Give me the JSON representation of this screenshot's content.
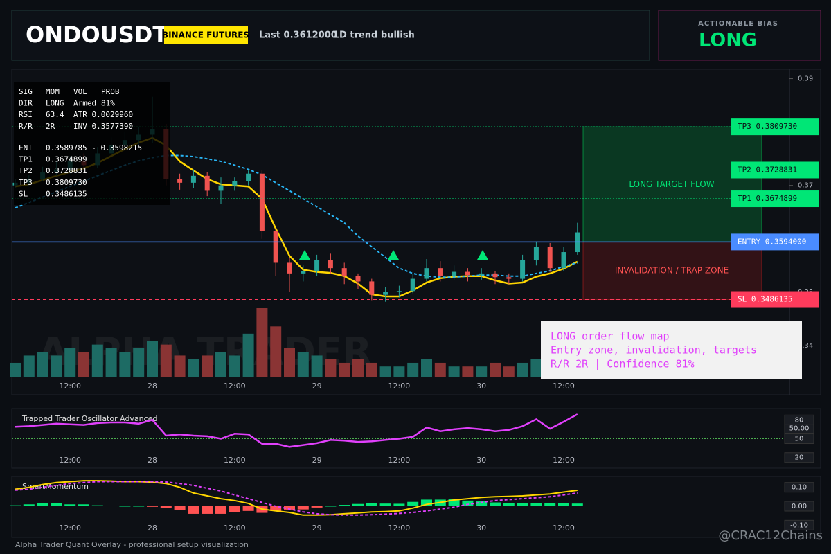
{
  "header": {
    "symbol": "ONDOUSDT",
    "exchange": "BINANCE FUTURES",
    "last": "Last 0.3612000",
    "trend": "1D trend bullish"
  },
  "bias": {
    "label": "ACTIONABLE BIAS",
    "value": "LONG"
  },
  "info_panel": {
    "status_rows": [
      [
        "SIG",
        "MOM",
        "VOL",
        "PROB"
      ],
      [
        "DIR",
        "LONG",
        "Armed",
        "81%"
      ],
      [
        "RSI",
        "63.4",
        "ATR 0.0029960"
      ],
      [
        "R/R",
        "2R",
        "INV 0.3577390"
      ]
    ],
    "level_rows": [
      [
        "ENT",
        "0.3589785 - 0.3598215"
      ],
      [
        "TP1",
        "0.3674899"
      ],
      [
        "TP2",
        "0.3728831"
      ],
      [
        "TP3",
        "0.3809730"
      ],
      [
        "SL",
        "0.3486135"
      ]
    ]
  },
  "chart_data": [
    {
      "type": "candlestick",
      "categories": [
        null,
        null,
        null,
        null,
        "12:00",
        null,
        null,
        null,
        null,
        null,
        "28",
        null,
        null,
        null,
        null,
        null,
        "12:00",
        null,
        null,
        null,
        null,
        null,
        "29",
        null,
        null,
        null,
        null,
        null,
        "12:00",
        null,
        null,
        null,
        null,
        null,
        "30",
        null,
        null,
        null,
        null,
        null,
        "12:00",
        null
      ],
      "open": [
        0.37,
        0.3705,
        0.3712,
        0.3725,
        0.373,
        0.3745,
        0.3738,
        0.376,
        0.3775,
        0.3785,
        0.3795,
        0.3805,
        0.3712,
        0.3705,
        0.3718,
        0.369,
        0.37,
        0.3708,
        0.3722,
        0.3615,
        0.3555,
        0.3535,
        0.354,
        0.356,
        0.3545,
        0.353,
        0.352,
        0.3495,
        0.35,
        0.3502,
        0.3525,
        0.3545,
        0.353,
        0.3538,
        0.3532,
        0.3535,
        0.3528,
        0.3525,
        0.356,
        0.3585,
        0.3545,
        0.3575
      ],
      "high": [
        0.3712,
        0.372,
        0.3735,
        0.3745,
        0.3755,
        0.376,
        0.3772,
        0.379,
        0.38,
        0.381,
        0.3866,
        0.3815,
        0.3722,
        0.373,
        0.3725,
        0.3715,
        0.3715,
        0.3728,
        0.3728,
        0.362,
        0.3565,
        0.355,
        0.357,
        0.3572,
        0.3555,
        0.3535,
        0.3525,
        0.351,
        0.3512,
        0.3535,
        0.3562,
        0.3558,
        0.355,
        0.3545,
        0.3545,
        0.354,
        0.3535,
        0.357,
        0.3595,
        0.3592,
        0.3585,
        0.363
      ],
      "low": [
        0.3695,
        0.37,
        0.3708,
        0.3718,
        0.3722,
        0.373,
        0.3732,
        0.3752,
        0.3765,
        0.3772,
        0.378,
        0.37,
        0.3692,
        0.3695,
        0.368,
        0.3665,
        0.369,
        0.37,
        0.36,
        0.353,
        0.35,
        0.352,
        0.353,
        0.3535,
        0.3515,
        0.3505,
        0.3485,
        0.3482,
        0.349,
        0.3498,
        0.352,
        0.352,
        0.3522,
        0.352,
        0.3522,
        0.3515,
        0.3515,
        0.352,
        0.355,
        0.3538,
        0.354,
        0.357
      ],
      "close": [
        0.3705,
        0.3712,
        0.3725,
        0.373,
        0.3745,
        0.3738,
        0.376,
        0.3775,
        0.3785,
        0.3795,
        0.3805,
        0.3712,
        0.3705,
        0.3718,
        0.369,
        0.37,
        0.3708,
        0.3722,
        0.3615,
        0.3555,
        0.3535,
        0.354,
        0.356,
        0.3545,
        0.353,
        0.352,
        0.3495,
        0.35,
        0.3502,
        0.3525,
        0.3545,
        0.353,
        0.3538,
        0.3532,
        0.3535,
        0.3528,
        0.3525,
        0.356,
        0.3585,
        0.3545,
        0.3575,
        0.3612
      ],
      "volume": [
        20,
        30,
        35,
        30,
        40,
        35,
        45,
        40,
        35,
        40,
        50,
        45,
        30,
        25,
        30,
        35,
        30,
        60,
        95,
        70,
        40,
        35,
        30,
        25,
        20,
        25,
        20,
        15,
        15,
        20,
        25,
        20,
        15,
        15,
        15,
        20,
        15,
        20,
        25,
        20,
        25,
        40
      ],
      "colors": {
        "up": "#26a69a",
        "down": "#ef5350",
        "volume_up": "#1d6b64",
        "volume_down": "#8a3434"
      },
      "lines": [
        {
          "color": "#ffd600",
          "dashed": false,
          "values": [
            0.3698,
            0.3702,
            0.371,
            0.3718,
            0.3725,
            0.3732,
            0.3742,
            0.3755,
            0.3768,
            0.378,
            0.3789,
            0.3775,
            0.3745,
            0.3728,
            0.3712,
            0.3702,
            0.37,
            0.3698,
            0.3675,
            0.3619,
            0.3568,
            0.3542,
            0.3538,
            0.3536,
            0.353,
            0.3516,
            0.3496,
            0.3492,
            0.3492,
            0.3503,
            0.3518,
            0.3526,
            0.3529,
            0.353,
            0.353,
            0.3522,
            0.3516,
            0.3518,
            0.3529,
            0.3535,
            0.3544,
            0.3557
          ]
        },
        {
          "color": "#29b6f6",
          "dashed": true,
          "values": [
            0.3658,
            0.3668,
            0.3678,
            0.3688,
            0.3698,
            0.3708,
            0.3718,
            0.3728,
            0.3738,
            0.3746,
            0.3752,
            0.3756,
            0.3756,
            0.3754,
            0.375,
            0.3745,
            0.3738,
            0.373,
            0.372,
            0.3705,
            0.369,
            0.3675,
            0.366,
            0.3645,
            0.363,
            0.3605,
            0.3585,
            0.3565,
            0.3545,
            0.3535,
            0.353,
            0.3528,
            0.3528,
            0.353,
            0.3532,
            0.3532,
            0.353,
            0.353,
            0.3535,
            0.354,
            0.3548,
            0.3555
          ]
        }
      ],
      "ylim": [
        0.3335,
        0.3915
      ],
      "yticks": [
        0.34,
        0.35,
        0.37,
        0.39
      ],
      "zones": [
        {
          "label": "LONG TARGET FLOW",
          "from": 0.3594,
          "to": 0.380973,
          "color": "#00c853",
          "text_color": "#00e676"
        },
        {
          "label": "INVALIDATION / TRAP ZONE",
          "from": 0.3486135,
          "to": 0.3594,
          "color": "#b71c1c",
          "text_color": "#ff5252"
        }
      ],
      "levels": [
        {
          "label": "TP3 0.3809730",
          "value": 0.380973,
          "color": "#00e676",
          "text_color": "#0b0f14",
          "style": "dotted"
        },
        {
          "label": "TP2 0.3728831",
          "value": 0.3728831,
          "color": "#00e676",
          "text_color": "#0b0f14",
          "style": "dotted"
        },
        {
          "label": "TP1 0.3674899",
          "value": 0.3674899,
          "color": "#00e676",
          "text_color": "#0b0f14",
          "style": "dotted"
        },
        {
          "label": "ENTRY 0.3594000",
          "value": 0.3594,
          "color": "#4a8cff",
          "text_color": "#ffffff",
          "style": "solid"
        },
        {
          "label": "SL 0.3486135",
          "value": 0.3486135,
          "color": "#ff3b5c",
          "text_color": "#ffffff",
          "style": "dashed"
        }
      ]
    },
    {
      "type": "line",
      "title": "Trapped Trader Oscillator Advanced",
      "color": "#e040fb",
      "values": [
        69,
        70,
        72,
        74,
        73,
        72,
        75,
        76,
        76,
        74,
        80,
        55,
        57,
        55,
        54,
        50,
        58,
        57,
        42,
        42,
        37,
        40,
        43,
        48,
        47,
        45,
        46,
        48,
        50,
        53,
        68,
        62,
        65,
        67,
        65,
        62,
        64,
        70,
        81,
        66,
        77,
        89
      ],
      "ylim": [
        12,
        98
      ],
      "yticks": [
        20,
        50,
        80
      ],
      "hline": {
        "value": 50,
        "label": "50.00",
        "color": "#4caf50"
      }
    },
    {
      "type": "histogram",
      "title": "SmartMomentum",
      "values": [
        0.005,
        0.01,
        0.015,
        0.015,
        0.01,
        0.01,
        0.005,
        0.003,
        0,
        0,
        -0.003,
        -0.008,
        -0.02,
        -0.04,
        -0.04,
        -0.04,
        -0.03,
        -0.025,
        -0.035,
        -0.025,
        -0.018,
        -0.017,
        -0.007,
        0,
        0.007,
        0.012,
        0.015,
        0.014,
        0.013,
        0.023,
        0.035,
        0.035,
        0.038,
        0.03,
        0.027,
        0.02,
        0.017,
        0.015,
        0.015,
        0.015,
        0.015,
        0.014
      ],
      "colors": {
        "up": "#00e676",
        "down": "#ff5252"
      },
      "lines": [
        {
          "color": "#ffd600",
          "dashed": false,
          "values": [
            0.09,
            0.1,
            0.115,
            0.125,
            0.13,
            0.135,
            0.135,
            0.133,
            0.13,
            0.13,
            0.127,
            0.12,
            0.1,
            0.07,
            0.055,
            0.04,
            0.03,
            0.015,
            -0.015,
            -0.025,
            -0.033,
            -0.047,
            -0.047,
            -0.045,
            -0.04,
            -0.035,
            -0.03,
            -0.028,
            -0.025,
            -0.01,
            0.01,
            0.02,
            0.033,
            0.04,
            0.047,
            0.05,
            0.052,
            0.055,
            0.06,
            0.065,
            0.075,
            0.084
          ]
        },
        {
          "color": "#e040fb",
          "dashed": true,
          "values": [
            0.085,
            0.09,
            0.1,
            0.11,
            0.12,
            0.125,
            0.13,
            0.13,
            0.13,
            0.13,
            0.13,
            0.128,
            0.12,
            0.11,
            0.095,
            0.08,
            0.06,
            0.04,
            0.02,
            0,
            -0.015,
            -0.03,
            -0.04,
            -0.045,
            -0.047,
            -0.047,
            -0.045,
            -0.042,
            -0.038,
            -0.033,
            -0.025,
            -0.015,
            -0.005,
            0.01,
            0.02,
            0.03,
            0.035,
            0.04,
            0.045,
            0.05,
            0.06,
            0.07
          ]
        }
      ],
      "ylim": [
        -0.15,
        0.15
      ],
      "yticks": [
        {
          "value": 0.1,
          "label": "0.10"
        },
        {
          "value": 0,
          "label": "0.00"
        },
        {
          "value": -0.1,
          "label": "-0.10"
        }
      ]
    }
  ],
  "annotation": {
    "lines": [
      "LONG order flow map",
      "Entry zone, invalidation, targets",
      "R/R 2R | Confidence 81%"
    ]
  },
  "watermark": "ALPHA TRADER",
  "footer": "Alpha Trader Quant Overlay - professional setup visualization",
  "credit": "@CRAC12Chains"
}
